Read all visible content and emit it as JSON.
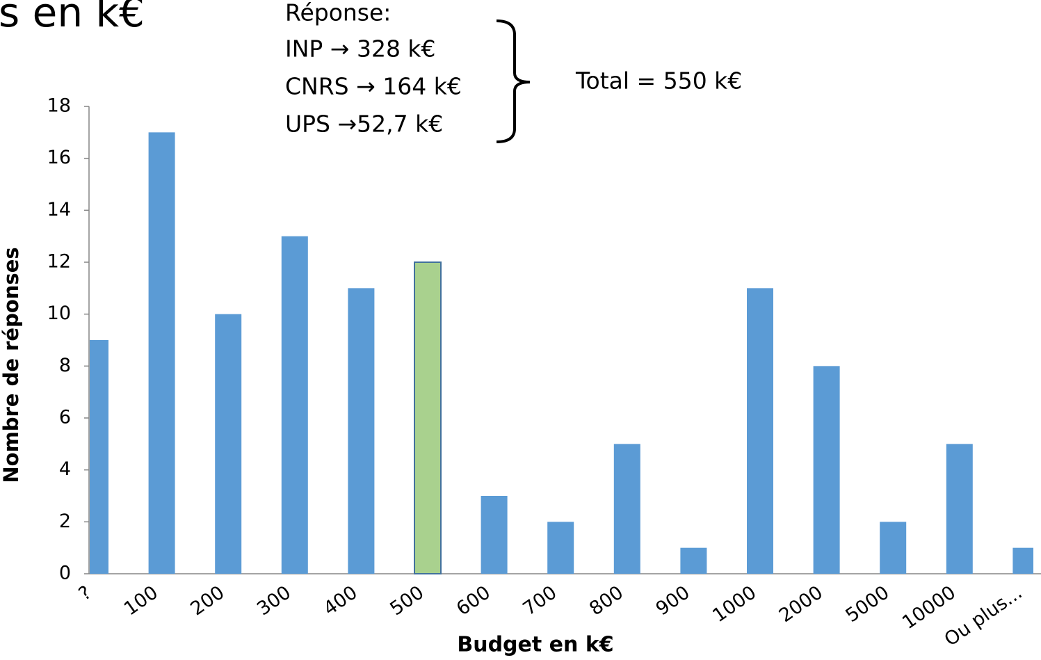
{
  "chart_data": {
    "type": "bar",
    "title": "s en k€",
    "annotations": [
      "Réponse:",
      "INP → 328 k€",
      "CNRS → 164 k€",
      "UPS →52,7 k€"
    ],
    "total_annotation": "Total = 550 k€",
    "x_label": "Budget en k€",
    "y_label": "Nombre de réponses",
    "categories": [
      "?",
      "100",
      "200",
      "300",
      "400",
      "500",
      "600",
      "700",
      "800",
      "900",
      "1000",
      "2000",
      "5000",
      "10000",
      "Ou plus..."
    ],
    "values": [
      9,
      17,
      10,
      13,
      11,
      12,
      3,
      2,
      5,
      1,
      11,
      8,
      2,
      5,
      1
    ],
    "colors": [
      "#5b9bd5",
      "#5b9bd5",
      "#5b9bd5",
      "#5b9bd5",
      "#5b9bd5",
      "#a9d18e",
      "#5b9bd5",
      "#5b9bd5",
      "#5b9bd5",
      "#5b9bd5",
      "#5b9bd5",
      "#5b9bd5",
      "#5b9bd5",
      "#5b9bd5",
      "#5b9bd5"
    ],
    "ylim": [
      0,
      18
    ],
    "yticks": [
      0,
      2,
      4,
      6,
      8,
      10,
      12,
      14,
      16,
      18
    ],
    "grid": false
  }
}
